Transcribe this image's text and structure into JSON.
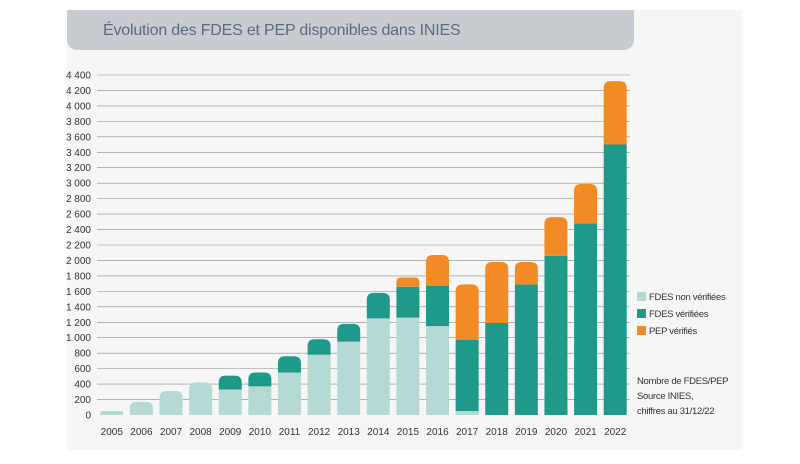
{
  "chart_data": {
    "type": "bar",
    "stacked": true,
    "title": "Évolution des FDES et PEP disponibles dans INIES",
    "categories": [
      "2005",
      "2006",
      "2007",
      "2008",
      "2009",
      "2010",
      "2011",
      "2012",
      "2013",
      "2014",
      "2015",
      "2016",
      "2017",
      "2018",
      "2019",
      "2020",
      "2021",
      "2022"
    ],
    "series": [
      {
        "name": "FDES non vérifiées",
        "color": "#b5d9d5",
        "values": [
          50,
          170,
          310,
          420,
          330,
          370,
          550,
          780,
          950,
          1250,
          1260,
          1150,
          50,
          0,
          0,
          0,
          0,
          0
        ]
      },
      {
        "name": "FDES vérifiées",
        "color": "#1f9a8a",
        "values": [
          0,
          0,
          0,
          0,
          180,
          180,
          210,
          200,
          230,
          330,
          400,
          520,
          920,
          1190,
          1690,
          2060,
          2480,
          3500
        ]
      },
      {
        "name": "PEP vérifiés",
        "color": "#f28a26",
        "values": [
          0,
          0,
          0,
          0,
          0,
          0,
          0,
          0,
          0,
          0,
          120,
          400,
          720,
          790,
          290,
          500,
          510,
          820
        ]
      }
    ],
    "yticks": [
      0,
      200,
      400,
      600,
      800,
      1000,
      1200,
      1400,
      1600,
      1800,
      2000,
      2200,
      2400,
      2600,
      2800,
      3000,
      3200,
      3400,
      3600,
      3800,
      4000,
      4200,
      4400
    ],
    "ytick_labels": [
      "0",
      "200",
      "400",
      "600",
      "800",
      "1 000",
      "1 200",
      "1 400",
      "1 600",
      "1 800",
      "2 000",
      "2 200",
      "2 400",
      "2 600",
      "2 800",
      "3 000",
      "3 200",
      "3 400",
      "3 600",
      "3 800",
      "4 000",
      "4 200",
      "4 400"
    ],
    "ylim": [
      0,
      4400
    ],
    "grid": true,
    "legend_position": "right"
  },
  "notes": [
    "Nombre de FDES/PEP",
    "Source INIES,",
    "chiffres au 31/12/22"
  ]
}
